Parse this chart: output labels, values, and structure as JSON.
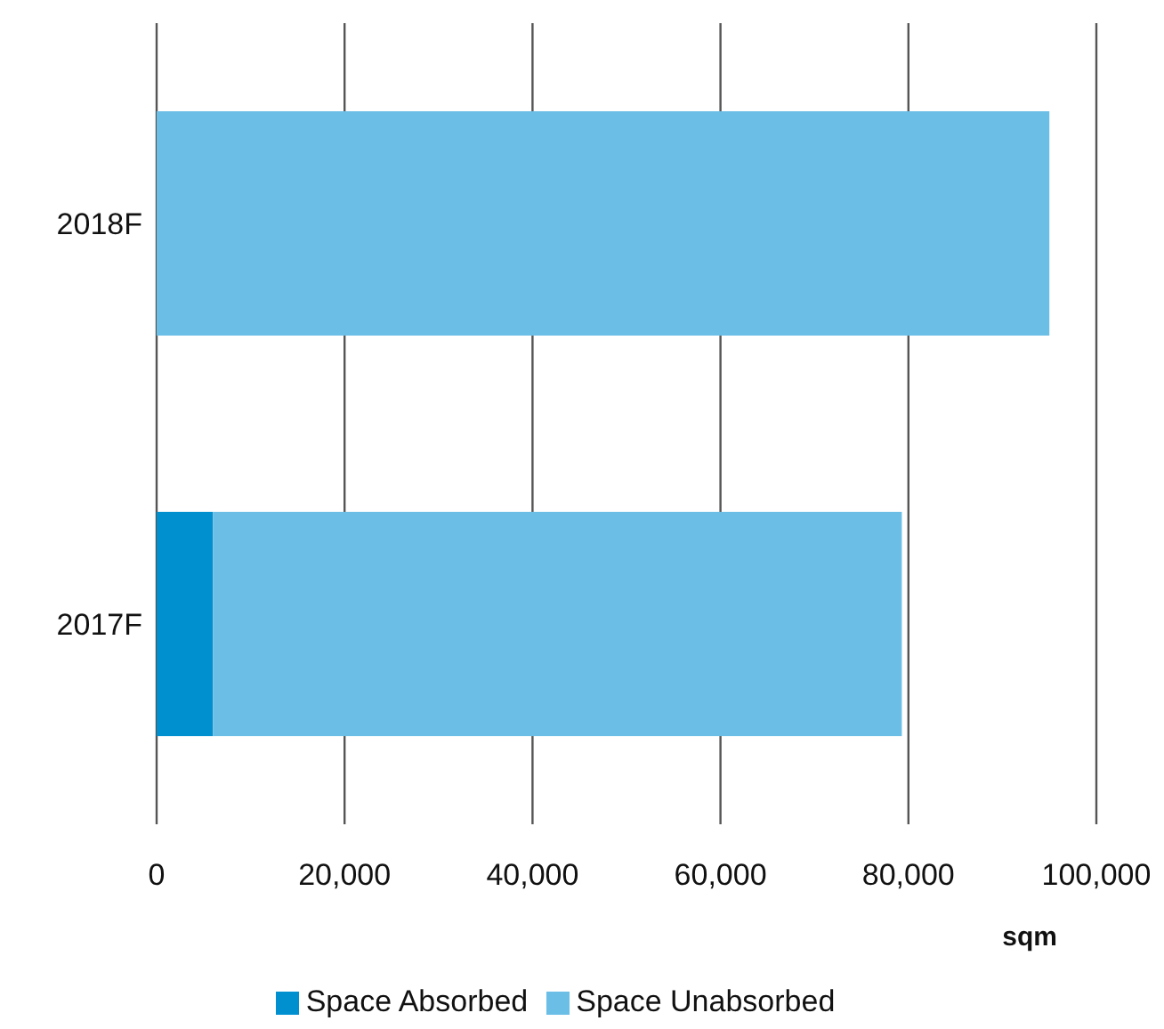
{
  "chart_data": {
    "type": "bar",
    "orientation": "horizontal",
    "stacked": true,
    "categories": [
      "2018F",
      "2017F"
    ],
    "series": [
      {
        "name": "Space Absorbed",
        "color": "#0090d0",
        "values": [
          0,
          6000
        ]
      },
      {
        "name": "Space Unabsorbed",
        "color": "#6bbfe6",
        "values": [
          95000,
          73300
        ]
      }
    ],
    "xlim": [
      0,
      100000
    ],
    "xticks": [
      {
        "value": 0,
        "label": "0"
      },
      {
        "value": 20000,
        "label": "20,000"
      },
      {
        "value": 40000,
        "label": "40,000"
      },
      {
        "value": 60000,
        "label": "60,000"
      },
      {
        "value": 80000,
        "label": "80,000"
      },
      {
        "value": 100000,
        "label": "100,000"
      }
    ],
    "xlabel": "sqm",
    "grid": "x",
    "legend": "bottom"
  }
}
